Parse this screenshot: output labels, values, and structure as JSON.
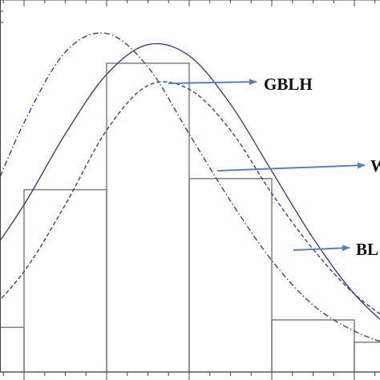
{
  "chart_data": {
    "type": "bar",
    "subtype": "histogram-with-fitted-density-curves",
    "title": "",
    "xlabel": "",
    "ylabel": "",
    "xlim": [
      0,
      9
    ],
    "ylim": [
      0,
      1
    ],
    "bins": [
      {
        "x0": 0,
        "x1": 1,
        "value": 0.12
      },
      {
        "x0": 1,
        "x1": 2,
        "value": 0.49
      },
      {
        "x0": 2,
        "x1": 3,
        "value": 0.83
      },
      {
        "x0": 3,
        "x1": 4,
        "value": 0.52
      },
      {
        "x0": 4,
        "x1": 5,
        "value": 0.14
      },
      {
        "x0": 5,
        "x1": 6,
        "value": 0.08
      }
    ],
    "curves": [
      {
        "name": "GBLH",
        "style": "solid",
        "color": "#3a3f8f",
        "points": [
          [
            0,
            0.17
          ],
          [
            0.5,
            0.29
          ],
          [
            1,
            0.45
          ],
          [
            1.5,
            0.64
          ],
          [
            2,
            0.8
          ],
          [
            2.5,
            0.88
          ],
          [
            3,
            0.85
          ],
          [
            3.5,
            0.72
          ],
          [
            4,
            0.54
          ],
          [
            4.5,
            0.36
          ],
          [
            5,
            0.21
          ],
          [
            5.5,
            0.11
          ],
          [
            6,
            0.06
          ]
        ]
      },
      {
        "name": "WP",
        "style": "dashed",
        "color": "#3a3f8f",
        "points": [
          [
            0,
            0.07
          ],
          [
            0.5,
            0.15
          ],
          [
            1,
            0.27
          ],
          [
            1.5,
            0.45
          ],
          [
            2,
            0.65
          ],
          [
            2.5,
            0.77
          ],
          [
            3,
            0.76
          ],
          [
            3.5,
            0.65
          ],
          [
            4,
            0.48
          ],
          [
            4.5,
            0.33
          ],
          [
            5,
            0.21
          ],
          [
            5.5,
            0.13
          ],
          [
            6,
            0.08
          ]
        ]
      },
      {
        "name": "BL",
        "style": "dashdot",
        "color": "#3a3f8f",
        "points": [
          [
            0,
            0.22
          ],
          [
            0.5,
            0.42
          ],
          [
            1,
            0.67
          ],
          [
            1.5,
            0.86
          ],
          [
            2,
            0.91
          ],
          [
            2.5,
            0.82
          ],
          [
            3,
            0.64
          ],
          [
            3.5,
            0.46
          ],
          [
            4,
            0.3
          ],
          [
            4.5,
            0.18
          ],
          [
            5,
            0.11
          ],
          [
            5.5,
            0.07
          ],
          [
            6,
            0.05
          ]
        ]
      }
    ],
    "labels": [
      {
        "series": "GBLH",
        "text": "GBLH"
      },
      {
        "series": "WP",
        "text": "WP"
      },
      {
        "series": "BL",
        "text": "BL"
      }
    ],
    "colors": {
      "bar_edge": "#808080",
      "curve": "#3a3f8f",
      "arrow": "#5d80b6",
      "axis": "#444444"
    }
  }
}
